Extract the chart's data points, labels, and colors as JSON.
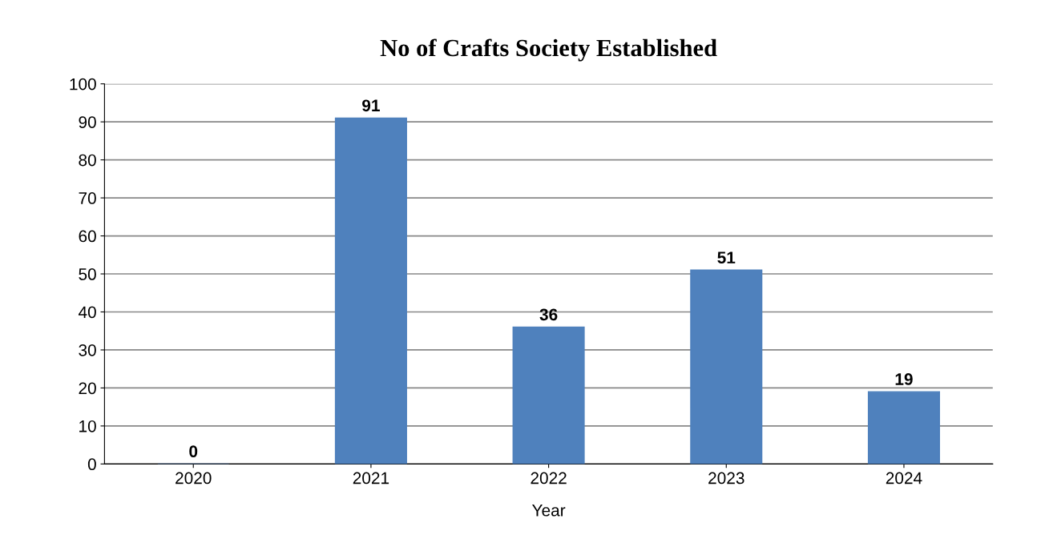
{
  "chart_data": {
    "type": "bar",
    "title": "No of Crafts Society Established",
    "xlabel": "Year",
    "categories": [
      "2020",
      "2021",
      "2022",
      "2023",
      "2024"
    ],
    "values": [
      0,
      91,
      36,
      51,
      19
    ],
    "color": "#4f81bd",
    "ylim": [
      0,
      100
    ],
    "yticks": [
      0,
      10,
      20,
      30,
      40,
      50,
      60,
      70,
      80,
      90,
      100
    ],
    "grid": "y",
    "data_labels": true
  }
}
